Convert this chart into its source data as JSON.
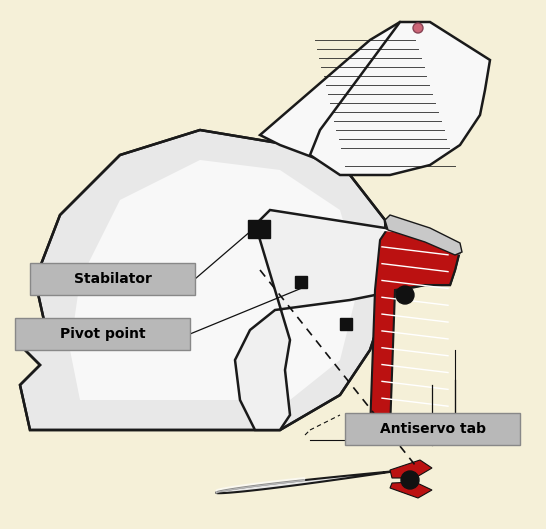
{
  "background_color": "#f5f0d8",
  "label_bg_color": "#b8b8b8",
  "red_color": "#bb1111",
  "dark_color": "#111111",
  "white_color": "#f8f8f8",
  "light_gray": "#e0e0e0",
  "med_gray": "#c8c8c8",
  "outline_color": "#1a1a1a",
  "stabilator_label": "Stabilator",
  "pivot_label": "Pivot point",
  "antiservo_label": "Antiservo tab",
  "figsize": [
    5.46,
    5.29
  ],
  "dpi": 100
}
